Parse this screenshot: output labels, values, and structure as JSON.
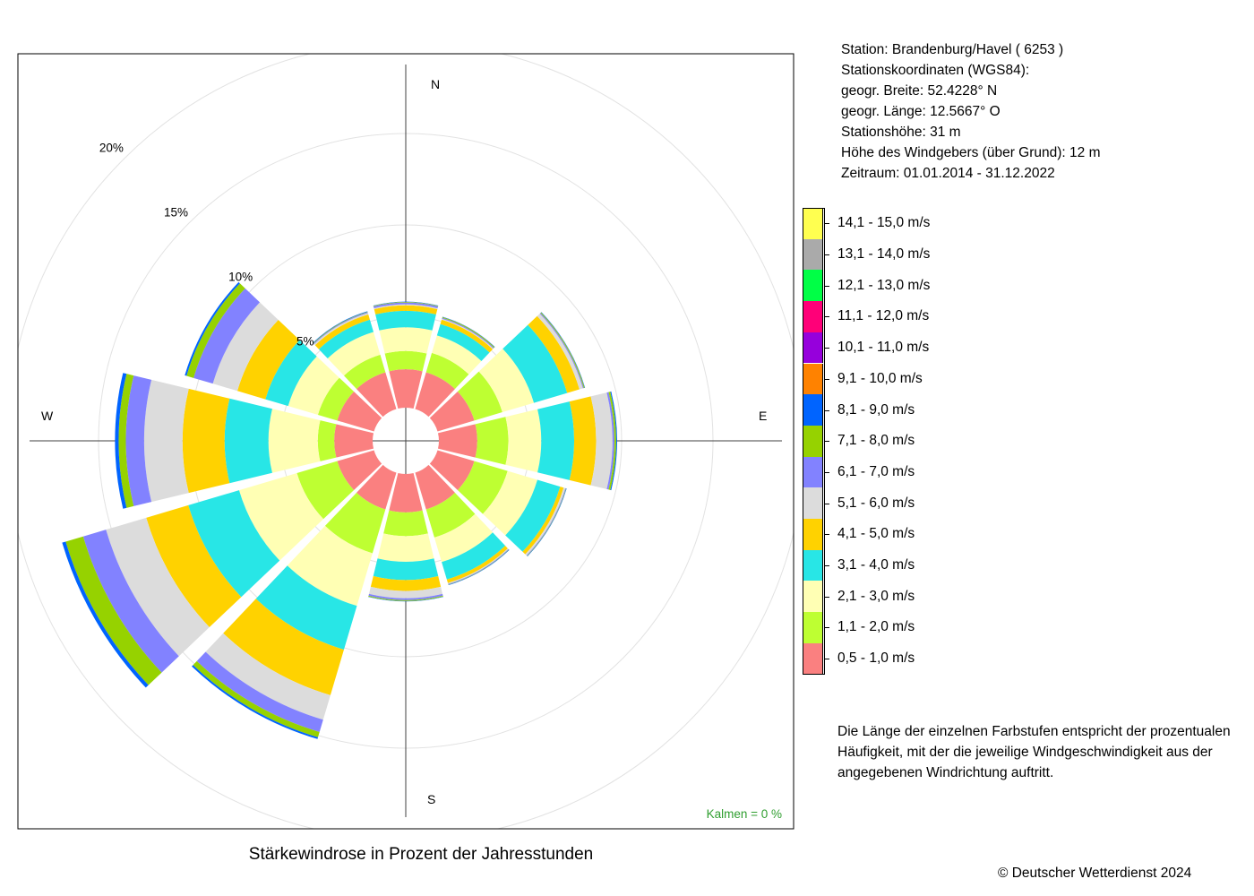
{
  "title": "Stärkewindrose in Prozent der Jahresstunden",
  "station_info": {
    "station": "Station:  Brandenburg/Havel  ( 6253 )",
    "coords_header": "Stationskoordinaten (WGS84):",
    "lat": "geogr. Breite: 52.4228° N",
    "lon": "geogr. Länge: 12.5667° O",
    "height": "Stationshöhe: 31 m",
    "anemometer": "Höhe des Windgebers (über Grund): 12 m",
    "period": "Zeitraum: 01.01.2014 - 31.12.2022"
  },
  "note": "Die Länge der einzelnen Farbstufen entspricht der prozentualen Häufigkeit, mit der die jeweilige Windgeschwindigkeit aus der angegebenen Windrichtung auftritt.",
  "copyright": "© Deutscher Wetterdienst  2024",
  "calm_label": "Kalmen  =  0 %",
  "chart_data": {
    "type": "windrose",
    "title": "Stärkewindrose in Prozent der Jahresstunden",
    "directions": [
      "N",
      "E",
      "S",
      "W"
    ],
    "sectors_deg": [
      0,
      30,
      60,
      90,
      120,
      150,
      180,
      210,
      240,
      270,
      300,
      330
    ],
    "radial_ticks": [
      "5%",
      "10%",
      "15%",
      "20%"
    ],
    "radial_tick_values": [
      5,
      10,
      15,
      20
    ],
    "rmax": 20,
    "grid": true,
    "calm_percent": 0,
    "speed_classes": [
      {
        "label": "0,5 - 1,0 m/s",
        "color": "#fa8080"
      },
      {
        "label": "1,1 - 2,0 m/s",
        "color": "#beff32"
      },
      {
        "label": "2,1 - 3,0 m/s",
        "color": "#ffffb4"
      },
      {
        "label": "3,1 - 4,0 m/s",
        "color": "#28e6e6"
      },
      {
        "label": "4,1 - 5,0 m/s",
        "color": "#ffd200"
      },
      {
        "label": "5,1 - 6,0 m/s",
        "color": "#dcdcdc"
      },
      {
        "label": "6,1 - 7,0 m/s",
        "color": "#8282ff"
      },
      {
        "label": "7,1 - 8,0 m/s",
        "color": "#96d200"
      },
      {
        "label": "8,1 - 9,0 m/s",
        "color": "#0064ff"
      },
      {
        "label": "9,1 - 10,0 m/s",
        "color": "#ff8200"
      },
      {
        "label": "10,1 - 11,0 m/s",
        "color": "#9600dc"
      },
      {
        "label": "11,1 - 12,0 m/s",
        "color": "#ff0078"
      },
      {
        "label": "12,1 - 13,0 m/s",
        "color": "#00ff46"
      },
      {
        "label": "13,1 - 14,0 m/s",
        "color": "#aaaaaa"
      },
      {
        "label": "14,1 - 15,0 m/s",
        "color": "#ffff50"
      }
    ],
    "sector_cumulative_percent": [
      [
        2.1,
        3.1,
        4.4,
        5.3,
        5.6,
        5.65,
        5.75,
        5.78,
        5.8
      ],
      [
        2.1,
        3.2,
        4.2,
        4.85,
        5.1,
        5.15,
        5.2,
        5.25,
        5.27
      ],
      [
        2.1,
        3.7,
        5.5,
        7.4,
        8.1,
        8.3,
        8.35,
        8.4,
        8.42
      ],
      [
        2.1,
        3.8,
        5.6,
        7.4,
        8.6,
        9.5,
        9.6,
        9.7,
        9.75
      ],
      [
        2.1,
        4.0,
        5.7,
        7.0,
        7.2,
        7.3,
        7.33,
        7.35,
        7.37
      ],
      [
        2.1,
        3.7,
        5.1,
        6.1,
        6.3,
        6.35,
        6.38,
        6.4,
        6.42
      ],
      [
        2.1,
        3.4,
        4.8,
        5.8,
        6.4,
        6.8,
        6.9,
        6.95,
        6.97
      ],
      [
        2.1,
        4.6,
        7.6,
        10.1,
        12.7,
        14.1,
        14.8,
        15.1,
        15.2
      ],
      [
        2.1,
        4.4,
        7.7,
        10.6,
        13.0,
        15.3,
        16.6,
        17.6,
        17.8
      ],
      [
        2.1,
        3.0,
        5.7,
        8.1,
        10.4,
        12.5,
        13.5,
        13.9,
        14.1
      ],
      [
        2.1,
        3.2,
        4.9,
        6.2,
        7.8,
        9.2,
        10.3,
        10.7,
        10.8
      ],
      [
        2.1,
        3.1,
        4.4,
        5.1,
        5.4,
        5.48,
        5.52,
        5.55,
        5.58
      ]
    ]
  }
}
